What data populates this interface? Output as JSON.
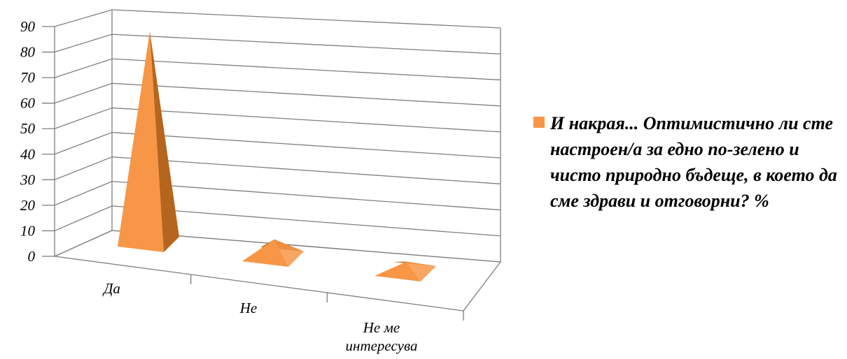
{
  "chart_data": {
    "type": "bar",
    "subtype": "3d-pyramid",
    "categories": [
      "Да",
      "Не",
      "Не ме интересува"
    ],
    "category_lines": [
      [
        "Да"
      ],
      [
        "Не"
      ],
      [
        "Не ме",
        "интересува"
      ]
    ],
    "series": [
      {
        "name": "И накрая... Оптимистично ли сте настроен/а за едно по-зелено и чисто природно бъдеще, в което да сме здрави и отговорни? %",
        "values": [
          84,
          7,
          4
        ]
      }
    ],
    "ylim": [
      0,
      90
    ],
    "yticks": [
      "0",
      "10",
      "20",
      "30",
      "40",
      "50",
      "60",
      "70",
      "80",
      "90"
    ],
    "grid": true,
    "legend_position": "right",
    "colors": {
      "front": "#f79646",
      "side": "#b5651d",
      "grid": "#7f7f7f"
    }
  },
  "legend": {
    "label": "И накрая... Оптимистично ли сте настроен/а за едно по-зелено и чисто природно бъдеще, в което да сме здрави и отговорни? %"
  }
}
